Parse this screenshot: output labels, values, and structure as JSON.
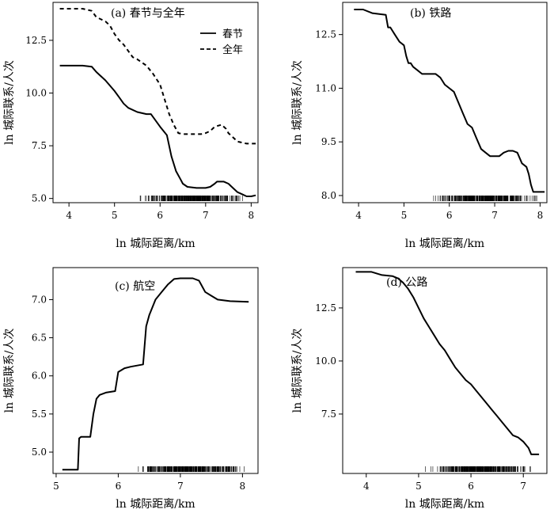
{
  "chart_data": [
    {
      "type": "line",
      "title": "(a) 春节与全年",
      "xlabel": "ln 城际距离/km",
      "ylabel": "ln 城际联系/人次",
      "xlim": [
        3.65,
        8.15
      ],
      "ylim": [
        4.8,
        14.3
      ],
      "xticks": [
        "4",
        "5",
        "6",
        "7",
        "8"
      ],
      "yticks": [
        "5.0",
        "7.5",
        "10.0",
        "12.5"
      ],
      "legend": "top-right",
      "rug": true,
      "series": [
        {
          "name": "春节",
          "style": "solid",
          "x": [
            3.8,
            4.0,
            4.3,
            4.5,
            4.6,
            4.8,
            5.0,
            5.1,
            5.2,
            5.3,
            5.5,
            5.7,
            5.8,
            5.9,
            6.0,
            6.15,
            6.25,
            6.35,
            6.45,
            6.5,
            6.6,
            6.8,
            7.0,
            7.1,
            7.2,
            7.25,
            7.3,
            7.4,
            7.5,
            7.6,
            7.7,
            7.8,
            7.9,
            8.0,
            8.1
          ],
          "values": [
            11.3,
            11.3,
            11.3,
            11.25,
            11.0,
            10.6,
            10.1,
            9.8,
            9.5,
            9.3,
            9.1,
            9.0,
            9.0,
            8.7,
            8.4,
            8.0,
            7.0,
            6.3,
            5.9,
            5.7,
            5.55,
            5.5,
            5.5,
            5.55,
            5.7,
            5.8,
            5.8,
            5.8,
            5.7,
            5.5,
            5.3,
            5.2,
            5.1,
            5.1,
            5.15
          ]
        },
        {
          "name": "全年",
          "style": "dashed",
          "x": [
            3.8,
            4.1,
            4.3,
            4.5,
            4.6,
            4.8,
            4.9,
            5.0,
            5.1,
            5.2,
            5.3,
            5.4,
            5.5,
            5.7,
            5.85,
            6.0,
            6.1,
            6.2,
            6.3,
            6.4,
            6.5,
            6.7,
            6.9,
            7.0,
            7.1,
            7.2,
            7.35,
            7.45,
            7.5,
            7.6,
            7.7,
            7.9,
            8.1
          ],
          "values": [
            14.0,
            14.0,
            14.0,
            13.9,
            13.6,
            13.4,
            13.2,
            12.8,
            12.5,
            12.3,
            12.0,
            11.7,
            11.6,
            11.3,
            10.9,
            10.4,
            9.7,
            9.0,
            8.5,
            8.1,
            8.05,
            8.05,
            8.05,
            8.1,
            8.2,
            8.4,
            8.5,
            8.3,
            8.1,
            7.9,
            7.7,
            7.6,
            7.6
          ]
        }
      ]
    },
    {
      "type": "line",
      "title": "(b) 铁路",
      "xlabel": "ln 城际距离/km",
      "ylabel": "ln 城际联系/人次",
      "xlim": [
        3.65,
        8.15
      ],
      "ylim": [
        7.8,
        13.4
      ],
      "xticks": [
        "4",
        "5",
        "6",
        "7",
        "8"
      ],
      "yticks": [
        "8.0",
        "9.5",
        "11.0",
        "12.5"
      ],
      "rug": true,
      "series": [
        {
          "x": [
            3.9,
            4.1,
            4.3,
            4.6,
            4.65,
            4.7,
            4.8,
            4.9,
            5.0,
            5.05,
            5.1,
            5.15,
            5.2,
            5.3,
            5.4,
            5.5,
            5.7,
            5.8,
            5.9,
            6.0,
            6.1,
            6.2,
            6.3,
            6.4,
            6.5,
            6.6,
            6.7,
            6.8,
            6.9,
            7.0,
            7.1,
            7.2,
            7.3,
            7.4,
            7.5,
            7.6,
            7.7,
            7.75,
            7.8,
            7.85,
            8.1
          ],
          "values": [
            13.2,
            13.2,
            13.1,
            13.05,
            12.7,
            12.7,
            12.5,
            12.3,
            12.2,
            11.9,
            11.7,
            11.7,
            11.6,
            11.5,
            11.4,
            11.4,
            11.4,
            11.3,
            11.1,
            11.0,
            10.9,
            10.6,
            10.3,
            10.0,
            9.9,
            9.6,
            9.3,
            9.2,
            9.1,
            9.1,
            9.1,
            9.2,
            9.25,
            9.25,
            9.2,
            8.9,
            8.8,
            8.6,
            8.3,
            8.1,
            8.1
          ]
        }
      ]
    },
    {
      "type": "line",
      "title": "(c) 航空",
      "xlabel": "ln 城际距离/km",
      "ylabel": "ln 城际联系/人次",
      "xlim": [
        4.95,
        8.25
      ],
      "ylim": [
        4.72,
        7.42
      ],
      "xticks": [
        "5",
        "6",
        "7",
        "8"
      ],
      "yticks": [
        "5.0",
        "5.5",
        "6.0",
        "6.5",
        "7.0"
      ],
      "rug": true,
      "series": [
        {
          "x": [
            5.1,
            5.35,
            5.37,
            5.4,
            5.55,
            5.6,
            5.65,
            5.7,
            5.8,
            5.95,
            6.0,
            6.1,
            6.2,
            6.4,
            6.45,
            6.5,
            6.6,
            6.7,
            6.8,
            6.9,
            7.0,
            7.2,
            7.3,
            7.4,
            7.5,
            7.6,
            7.8,
            8.1
          ],
          "values": [
            4.77,
            4.77,
            5.18,
            5.2,
            5.2,
            5.5,
            5.7,
            5.75,
            5.78,
            5.8,
            6.05,
            6.1,
            6.12,
            6.15,
            6.65,
            6.8,
            7.0,
            7.1,
            7.2,
            7.27,
            7.28,
            7.28,
            7.25,
            7.1,
            7.05,
            7.0,
            6.98,
            6.97
          ]
        }
      ]
    },
    {
      "type": "line",
      "title": "(d) 公路",
      "xlabel": "ln 城际距离/km",
      "ylabel": "ln 城际联系/人次",
      "xlim": [
        3.55,
        7.45
      ],
      "ylim": [
        4.7,
        14.4
      ],
      "xticks": [
        "4",
        "5",
        "6",
        "7"
      ],
      "yticks": [
        "7.5",
        "10.0",
        "12.5"
      ],
      "rug": true,
      "series": [
        {
          "x": [
            3.8,
            4.1,
            4.3,
            4.5,
            4.6,
            4.7,
            4.8,
            4.9,
            5.0,
            5.1,
            5.2,
            5.3,
            5.4,
            5.5,
            5.6,
            5.7,
            5.8,
            5.9,
            6.0,
            6.1,
            6.2,
            6.3,
            6.4,
            6.5,
            6.6,
            6.7,
            6.8,
            6.9,
            7.0,
            7.1,
            7.15,
            7.3
          ],
          "values": [
            14.2,
            14.2,
            14.05,
            14.0,
            13.9,
            13.7,
            13.4,
            13.0,
            12.5,
            12.0,
            11.6,
            11.2,
            10.8,
            10.5,
            10.1,
            9.7,
            9.4,
            9.1,
            8.9,
            8.6,
            8.3,
            8.0,
            7.7,
            7.4,
            7.1,
            6.8,
            6.5,
            6.4,
            6.2,
            5.9,
            5.6,
            5.6
          ]
        }
      ]
    }
  ]
}
